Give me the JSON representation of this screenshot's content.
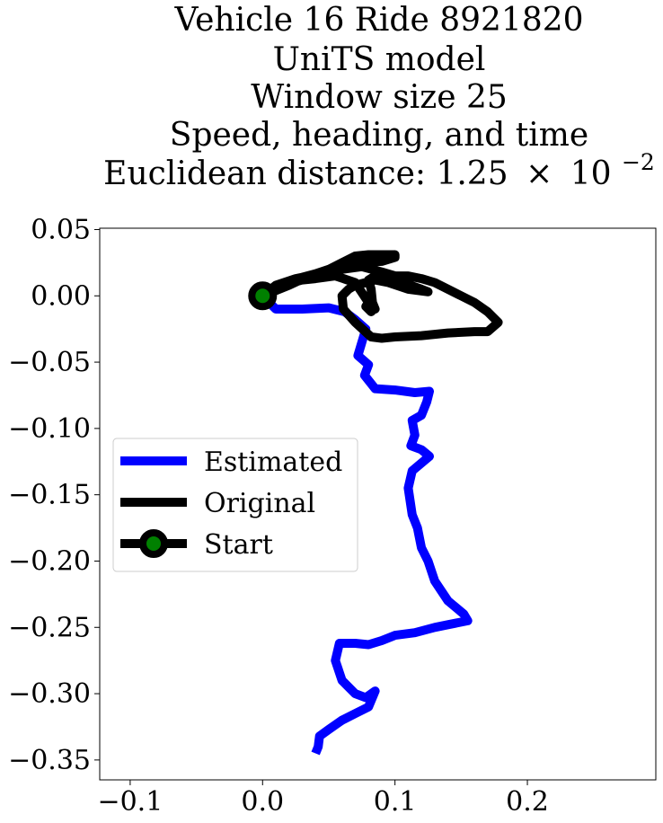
{
  "chart_data": {
    "type": "line",
    "title_lines": [
      "Vehicle 16 Ride 8921820",
      "UniTS model",
      "Window size 25",
      "Speed, heading, and time"
    ],
    "title_distance_prefix": "Euclidean distance: 1.25",
    "title_distance_times": "×",
    "title_distance_base": "10",
    "title_distance_exponent": "−2",
    "xlabel": "",
    "ylabel": "",
    "xlim": [
      -0.123,
      0.297
    ],
    "ylim": [
      -0.365,
      0.051
    ],
    "xticks": [
      {
        "value": -0.1,
        "label": "−0.1"
      },
      {
        "value": 0.0,
        "label": "0.0"
      },
      {
        "value": 0.1,
        "label": "0.1"
      },
      {
        "value": 0.2,
        "label": "0.2"
      }
    ],
    "yticks": [
      {
        "value": 0.05,
        "label": "0.05"
      },
      {
        "value": 0.0,
        "label": "0.00"
      },
      {
        "value": -0.05,
        "label": "−0.05"
      },
      {
        "value": -0.1,
        "label": "−0.10"
      },
      {
        "value": -0.15,
        "label": "−0.15"
      },
      {
        "value": -0.2,
        "label": "−0.20"
      },
      {
        "value": -0.25,
        "label": "−0.25"
      },
      {
        "value": -0.3,
        "label": "−0.30"
      },
      {
        "value": -0.35,
        "label": "−0.35"
      }
    ],
    "grid": false,
    "legend_position": "center-left",
    "series": [
      {
        "name": "Estimated",
        "color": "#0000ff",
        "x": [
          0.0,
          0.01,
          0.03,
          0.05,
          0.062,
          0.07,
          0.078,
          0.075,
          0.072,
          0.08,
          0.077,
          0.085,
          0.1,
          0.115,
          0.126,
          0.124,
          0.12,
          0.113,
          0.115,
          0.112,
          0.12,
          0.126,
          0.113,
          0.11,
          0.113,
          0.117,
          0.12,
          0.125,
          0.13,
          0.14,
          0.152,
          0.155,
          0.14,
          0.13,
          0.115,
          0.1,
          0.09,
          0.08,
          0.07,
          0.058,
          0.055,
          0.06,
          0.07,
          0.078,
          0.085,
          0.08,
          0.07,
          0.06,
          0.05,
          0.043,
          0.042,
          0.04
        ],
        "y": [
          0.0,
          -0.01,
          -0.01,
          -0.009,
          -0.012,
          -0.018,
          -0.025,
          -0.035,
          -0.045,
          -0.052,
          -0.06,
          -0.07,
          -0.071,
          -0.073,
          -0.072,
          -0.08,
          -0.09,
          -0.094,
          -0.105,
          -0.113,
          -0.116,
          -0.121,
          -0.132,
          -0.145,
          -0.165,
          -0.175,
          -0.19,
          -0.2,
          -0.215,
          -0.23,
          -0.24,
          -0.245,
          -0.248,
          -0.25,
          -0.254,
          -0.256,
          -0.26,
          -0.263,
          -0.262,
          -0.262,
          -0.275,
          -0.29,
          -0.3,
          -0.303,
          -0.298,
          -0.31,
          -0.315,
          -0.32,
          -0.327,
          -0.332,
          -0.34,
          -0.345
        ]
      },
      {
        "name": "Original",
        "color": "#000000",
        "x": [
          0.0,
          0.01,
          0.025,
          0.045,
          0.06,
          0.075,
          0.09,
          0.1,
          0.11,
          0.12,
          0.13,
          0.14,
          0.15,
          0.16,
          0.17,
          0.178,
          0.17,
          0.16,
          0.14,
          0.12,
          0.1,
          0.09,
          0.082,
          0.07,
          0.061,
          0.06,
          0.065,
          0.07,
          0.078,
          0.085,
          0.095,
          0.11,
          0.125,
          0.12,
          0.1,
          0.085,
          0.08,
          0.082,
          0.083,
          0.085,
          0.084,
          0.082,
          0.078,
          0.08,
          0.07,
          0.055,
          0.04,
          0.03,
          0.015,
          0.0,
          0.02,
          0.035,
          0.05,
          0.06,
          0.07,
          0.08,
          0.093,
          0.1,
          0.1,
          0.09,
          0.075,
          0.06,
          0.045,
          0.03,
          0.02,
          0.01,
          0.0
        ],
        "y": [
          0.0,
          0.008,
          0.013,
          0.017,
          0.02,
          0.022,
          0.018,
          0.015,
          0.015,
          0.013,
          0.01,
          0.005,
          0.0,
          -0.005,
          -0.012,
          -0.02,
          -0.027,
          -0.027,
          -0.028,
          -0.03,
          -0.031,
          -0.032,
          -0.031,
          -0.02,
          -0.01,
          0.0,
          0.005,
          0.008,
          0.01,
          0.012,
          0.01,
          0.005,
          0.003,
          0.005,
          0.012,
          0.015,
          0.012,
          0.005,
          -0.005,
          -0.01,
          -0.01,
          -0.012,
          -0.008,
          -0.005,
          0.01,
          0.015,
          0.013,
          0.012,
          0.008,
          0.0,
          0.008,
          0.015,
          0.02,
          0.025,
          0.03,
          0.031,
          0.031,
          0.031,
          0.029,
          0.026,
          0.025,
          0.022,
          0.018,
          0.014,
          0.01,
          0.006,
          0.0
        ]
      }
    ],
    "start_marker": {
      "name": "Start",
      "x": 0.0,
      "y": 0.0,
      "edge_color": "#000000",
      "face_color": "#008000"
    },
    "legend_entries": [
      "Estimated",
      "Original",
      "Start"
    ]
  }
}
